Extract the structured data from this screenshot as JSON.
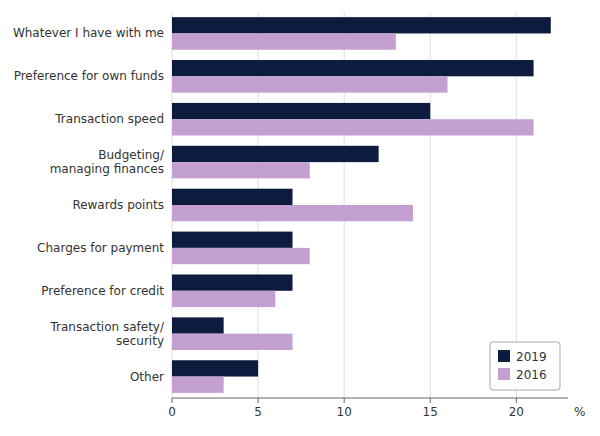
{
  "chart_data": {
    "type": "bar",
    "orientation": "horizontal",
    "categories": [
      "Whatever I have with me",
      "Preference for own funds",
      "Transaction speed",
      "Budgeting/\nmanaging finances",
      "Rewards points",
      "Charges for payment",
      "Preference for credit",
      "Transaction safety/\nsecurity",
      "Other"
    ],
    "series": [
      {
        "name": "2019",
        "color": "#0d1b3e",
        "values": [
          22,
          21,
          15,
          12,
          7,
          7,
          7,
          3,
          5
        ]
      },
      {
        "name": "2016",
        "color": "#c4a0d0",
        "values": [
          13,
          16,
          21,
          8,
          14,
          8,
          6,
          7,
          3
        ]
      }
    ],
    "xlim": [
      0,
      23
    ],
    "xticks": [
      0,
      5,
      10,
      15,
      20
    ],
    "xlabel": "%",
    "grid": true,
    "legend": "lower right"
  }
}
